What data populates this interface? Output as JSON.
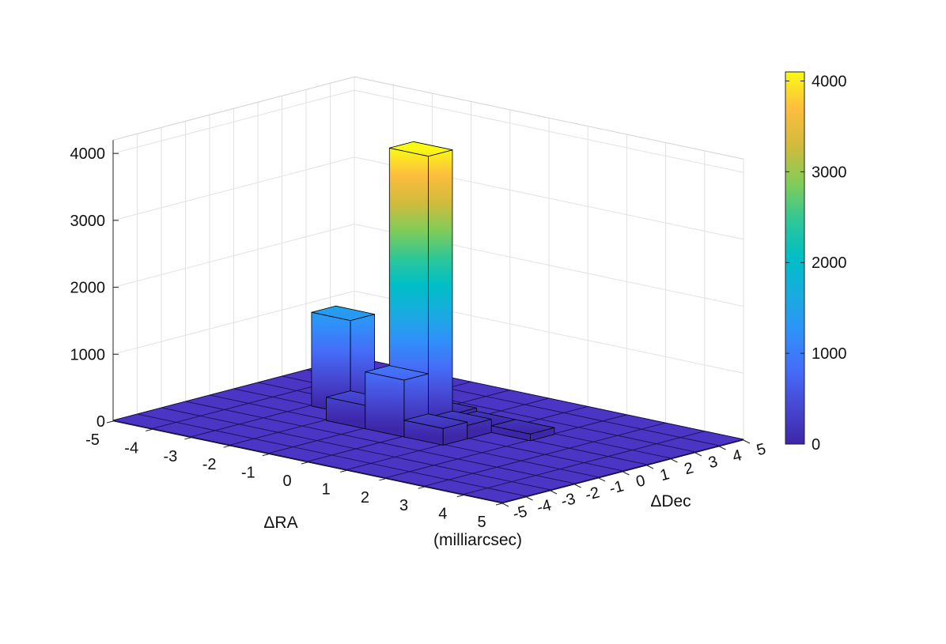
{
  "chart_data": {
    "type": "bar3d",
    "title": "",
    "xlabel": "ΔRA",
    "ylabel": "ΔDec",
    "unit_label": "(milliarcsec)",
    "zlabel": "",
    "x_ticks": [
      "-5",
      "-4",
      "-3",
      "-2",
      "-1",
      "0",
      "1",
      "2",
      "3",
      "4",
      "5"
    ],
    "y_ticks": [
      "-5",
      "-4",
      "-3",
      "-2",
      "-1",
      "0",
      "1",
      "2",
      "3",
      "4",
      "5"
    ],
    "z_ticks": [
      "0",
      "1000",
      "2000",
      "3000",
      "4000"
    ],
    "xlim": [
      -5,
      5
    ],
    "ylim": [
      -5,
      5
    ],
    "zlim": [
      0,
      4200
    ],
    "grid": true,
    "colormap": "parula",
    "colorbar": {
      "position": "right",
      "ticks": [
        "0",
        "1000",
        "2000",
        "3000",
        "4000"
      ],
      "range": [
        0,
        4100
      ]
    },
    "bin_edges": [
      -5,
      -4,
      -3,
      -2,
      -1,
      0,
      1,
      2,
      3,
      4,
      5
    ],
    "bars": [
      {
        "x": [
          -1,
          0
        ],
        "y": [
          0,
          1
        ],
        "z": 4100
      },
      {
        "x": [
          -3,
          -2
        ],
        "y": [
          0,
          1
        ],
        "z": 1400
      },
      {
        "x": [
          -1,
          0
        ],
        "y": [
          -1,
          0
        ],
        "z": 850
      },
      {
        "x": [
          -2,
          -1
        ],
        "y": [
          -1,
          0
        ],
        "z": 350
      },
      {
        "x": [
          0,
          1
        ],
        "y": [
          -1,
          0
        ],
        "z": 250
      },
      {
        "x": [
          0,
          1
        ],
        "y": [
          0,
          1
        ],
        "z": 200
      },
      {
        "x": [
          -1,
          0
        ],
        "y": [
          1,
          2
        ],
        "z": 150
      },
      {
        "x": [
          0,
          1
        ],
        "y": [
          1,
          2
        ],
        "z": 100
      },
      {
        "x": [
          1,
          2
        ],
        "y": [
          1,
          2
        ],
        "z": 100
      }
    ]
  }
}
